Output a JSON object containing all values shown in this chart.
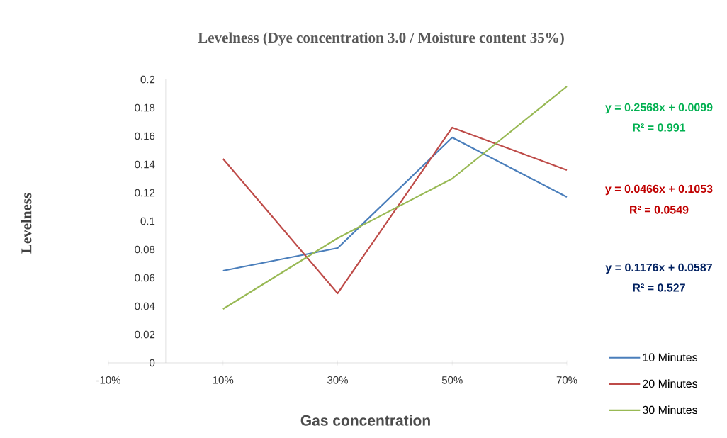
{
  "chart_data": {
    "type": "line",
    "title": "Levelness (Dye concentration 3.0 / Moisture content 35%)",
    "xlabel": "Gas concentration",
    "ylabel": "Levelness",
    "x": [
      10,
      30,
      50,
      70
    ],
    "series": [
      {
        "name": "10 Minutes",
        "color": "#4a7ebb",
        "values": [
          0.065,
          0.081,
          0.159,
          0.117
        ]
      },
      {
        "name": "20 Minutes",
        "color": "#be4b48",
        "values": [
          0.144,
          0.049,
          0.166,
          0.136
        ]
      },
      {
        "name": "30 Minutes",
        "color": "#98b954",
        "values": [
          0.038,
          0.088,
          0.13,
          0.195
        ]
      }
    ],
    "xlim": [
      -10,
      70
    ],
    "xticks": [
      {
        "value": -10,
        "label": "-10%"
      },
      {
        "value": 10,
        "label": "10%"
      },
      {
        "value": 30,
        "label": "30%"
      },
      {
        "value": 50,
        "label": "50%"
      },
      {
        "value": 70,
        "label": "70%"
      }
    ],
    "ylim": [
      0,
      0.2
    ],
    "yticks": [
      0,
      0.02,
      0.04,
      0.06,
      0.08,
      0.1,
      0.12,
      0.14,
      0.16,
      0.18,
      0.2
    ],
    "annotations": [
      "y = 0.2568x + 0.0099",
      "R² = 0.991",
      "y = 0.0466x + 0.1053",
      "R² = 0.0549",
      "y = 0.1176x + 0.0587",
      "R² = 0.527"
    ],
    "legend": "bottom right",
    "marker": "none",
    "line_style": "solid"
  }
}
